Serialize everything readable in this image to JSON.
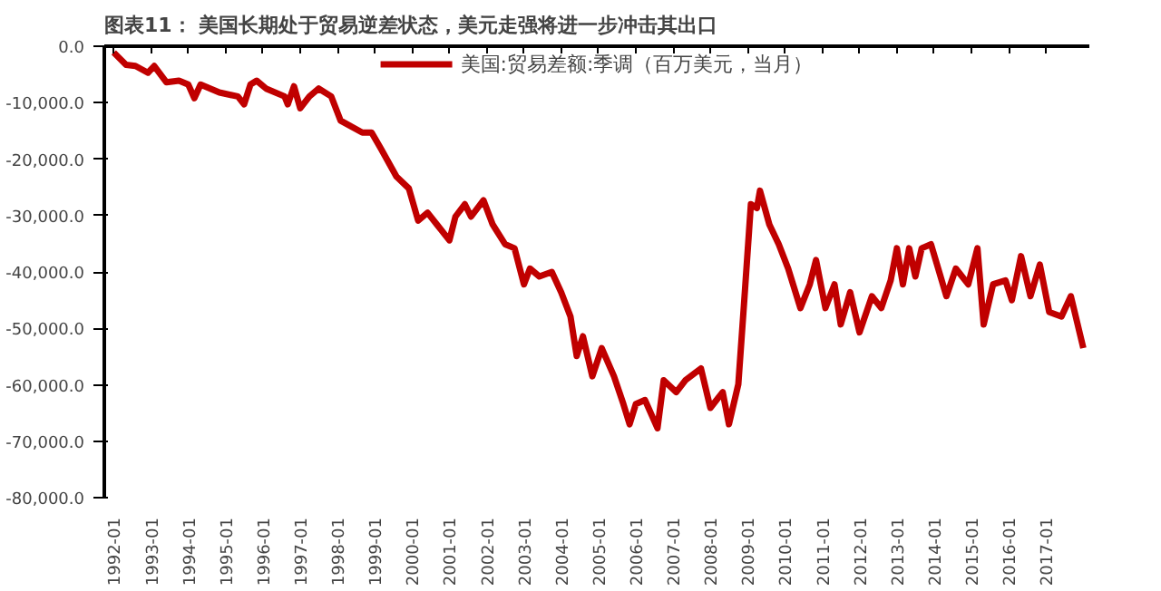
{
  "chart_data": {
    "type": "line",
    "title": "图表11：  美国长期处于贸易逆差状态，美元走强将进一步冲击其出口",
    "x": [
      "1992-01",
      "1992-05",
      "1992-08",
      "1992-12",
      "1993-02",
      "1993-06",
      "1993-10",
      "1994-01",
      "1994-03",
      "1994-05",
      "1994-11",
      "1995-05",
      "1995-07",
      "1995-09",
      "1995-11",
      "1996-02",
      "1996-08",
      "1996-09",
      "1996-11",
      "1997-01",
      "1997-04",
      "1997-07",
      "1997-11",
      "1998-02",
      "1998-09",
      "1998-12",
      "1999-03",
      "1999-08",
      "1999-12",
      "2000-03",
      "2000-06",
      "2000-09",
      "2001-01",
      "2001-03",
      "2001-06",
      "2001-08",
      "2001-12",
      "2002-03",
      "2002-07",
      "2002-10",
      "2003-01",
      "2003-03",
      "2003-06",
      "2003-10",
      "2004-01",
      "2004-04",
      "2004-06",
      "2004-08",
      "2004-11",
      "2005-02",
      "2005-06",
      "2005-09",
      "2005-11",
      "2006-01",
      "2006-04",
      "2006-08",
      "2006-10",
      "2007-02",
      "2007-05",
      "2007-10",
      "2008-01",
      "2008-05",
      "2008-07",
      "2008-10",
      "2008-12",
      "2009-02",
      "2009-04",
      "2009-05",
      "2009-08",
      "2009-11",
      "2010-02",
      "2010-06",
      "2010-09",
      "2010-11",
      "2011-02",
      "2011-05",
      "2011-07",
      "2011-10",
      "2012-01",
      "2012-05",
      "2012-08",
      "2012-11",
      "2013-01",
      "2013-03",
      "2013-05",
      "2013-07",
      "2013-09",
      "2013-12",
      "2014-05",
      "2014-08",
      "2014-12",
      "2015-03",
      "2015-05",
      "2015-08",
      "2015-12",
      "2016-02",
      "2016-05",
      "2016-08",
      "2016-11",
      "2017-02",
      "2017-06",
      "2017-09",
      "2018-01"
    ],
    "series": [
      {
        "name": "美国:贸易差额:季调（百万美元，当月）",
        "color": "#c00000",
        "values": [
          -1100,
          -3300,
          -3500,
          -4700,
          -3500,
          -6400,
          -6100,
          -6800,
          -9200,
          -6800,
          -8200,
          -8900,
          -10300,
          -6800,
          -6100,
          -7500,
          -8900,
          -10300,
          -7100,
          -11000,
          -8900,
          -7500,
          -8900,
          -13200,
          -15300,
          -15300,
          -18100,
          -23100,
          -25200,
          -30900,
          -29500,
          -31600,
          -34400,
          -30200,
          -28000,
          -30200,
          -27300,
          -31600,
          -35100,
          -35800,
          -42200,
          -39400,
          -40800,
          -40000,
          -43600,
          -47900,
          -54900,
          -51400,
          -58500,
          -53500,
          -58500,
          -63400,
          -67000,
          -63400,
          -62700,
          -67700,
          -59200,
          -61300,
          -59200,
          -57100,
          -64100,
          -61300,
          -67000,
          -59900,
          -44300,
          -28000,
          -28700,
          -25600,
          -31600,
          -35100,
          -39400,
          -46400,
          -42200,
          -37900,
          -46400,
          -42200,
          -49300,
          -43600,
          -50700,
          -44300,
          -46400,
          -41500,
          -35800,
          -42200,
          -35800,
          -40800,
          -35800,
          -35100,
          -44300,
          -39400,
          -42200,
          -35800,
          -49300,
          -42200,
          -41500,
          -45000,
          -37200,
          -44300,
          -38700,
          -47100,
          -47900,
          -44300,
          -53500
        ]
      }
    ],
    "xlim": [
      "1991-10",
      "2018-03"
    ],
    "xticks": [
      "1992-01",
      "1993-01",
      "1994-01",
      "1995-01",
      "1996-01",
      "1997-01",
      "1998-01",
      "1999-01",
      "2000-01",
      "2001-01",
      "2002-01",
      "2003-01",
      "2004-01",
      "2005-01",
      "2006-01",
      "2007-01",
      "2008-01",
      "2009-01",
      "2010-01",
      "2011-01",
      "2012-01",
      "2013-01",
      "2014-01",
      "2015-01",
      "2016-01",
      "2017-01"
    ],
    "ylim": [
      -80000,
      0
    ],
    "yticks": [
      {
        "value": 0,
        "label": "0.0"
      },
      {
        "value": -10000,
        "label": "-10,000.0"
      },
      {
        "value": -20000,
        "label": "-20,000.0"
      },
      {
        "value": -30000,
        "label": "-30,000.0"
      },
      {
        "value": -40000,
        "label": "-40,000.0"
      },
      {
        "value": -50000,
        "label": "-50,000.0"
      },
      {
        "value": -60000,
        "label": "-60,000.0"
      },
      {
        "value": -70000,
        "label": "-70,000.0"
      },
      {
        "value": -80000,
        "label": "-80,000.0"
      }
    ],
    "grid": false,
    "legend": "top",
    "marker": "none",
    "line_style": "solid"
  }
}
